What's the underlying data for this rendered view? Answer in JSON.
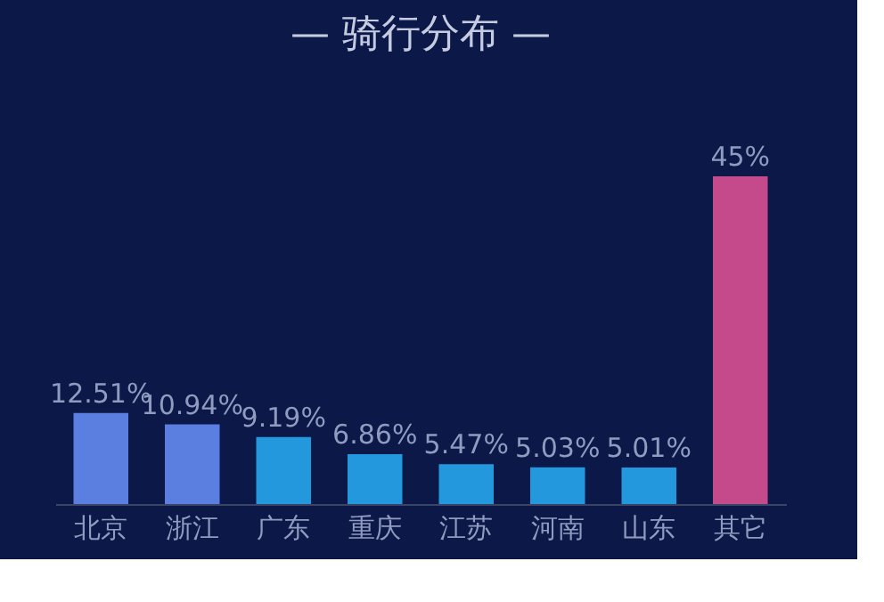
{
  "chart_data": {
    "type": "bar",
    "title": "— 骑行分布 —",
    "categories": [
      "北京",
      "浙江",
      "广东",
      "重庆",
      "江苏",
      "河南",
      "山东",
      "其它"
    ],
    "values": [
      12.51,
      10.94,
      9.19,
      6.86,
      5.47,
      5.03,
      5.01,
      45
    ],
    "value_labels": [
      "12.51%",
      "10.94%",
      "9.19%",
      "6.86%",
      "5.47%",
      "5.03%",
      "5.01%",
      "45%"
    ],
    "colors": [
      "#5a7fe0",
      "#5a7fe0",
      "#2398dc",
      "#2398dc",
      "#2398dc",
      "#2398dc",
      "#2398dc",
      "#c44a8c"
    ],
    "tick_labels": "x",
    "grid": false
  }
}
